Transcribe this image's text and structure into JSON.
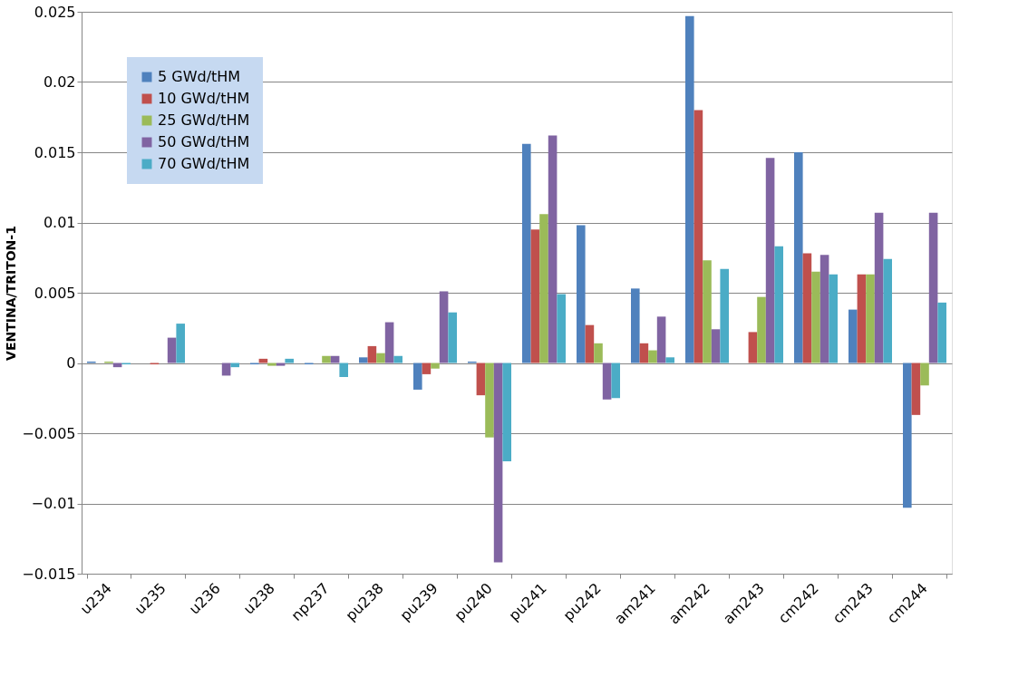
{
  "chart_data": {
    "type": "bar",
    "ylabel": "VENTINA/TRITON-1",
    "categories": [
      "u234",
      "u235",
      "u236",
      "u238",
      "np237",
      "pu238",
      "pu239",
      "pu240",
      "pu241",
      "pu242",
      "am241",
      "am242",
      "am243",
      "cm242",
      "cm243",
      "cm244"
    ],
    "series": [
      {
        "name": "5 GWd/tHM",
        "color": "#4f81bd",
        "values": [
          0.0001,
          0,
          0,
          -0.0001,
          -0.0001,
          0.0004,
          -0.0019,
          0.0001,
          0.0156,
          0.0098,
          0.0053,
          0.0247,
          0,
          0.015,
          0.0038,
          -0.0103
        ]
      },
      {
        "name": "10 GWd/tHM",
        "color": "#c0504d",
        "values": [
          0,
          -0.0001,
          0,
          0.0003,
          0,
          0.0012,
          -0.0008,
          -0.0023,
          0.0095,
          0.0027,
          0.0014,
          0.018,
          0.0022,
          0.0078,
          0.0063,
          -0.0037
        ]
      },
      {
        "name": "25 GWd/tHM",
        "color": "#9bbb59",
        "values": [
          0.0001,
          0,
          0,
          -0.0002,
          0.0005,
          0.0007,
          -0.0004,
          -0.0053,
          0.0106,
          0.0014,
          0.0009,
          0.0073,
          0.0047,
          0.0065,
          0.0063,
          -0.0016
        ]
      },
      {
        "name": "50 GWd/tHM",
        "color": "#8064a2",
        "values": [
          -0.0003,
          0.0018,
          -0.0009,
          -0.0002,
          0.0005,
          0.0029,
          0.0051,
          -0.0142,
          0.0162,
          -0.0026,
          0.0033,
          0.0024,
          0.0146,
          0.0077,
          0.0107,
          0.0107
        ]
      },
      {
        "name": "70 GWd/tHM",
        "color": "#4bacc6",
        "values": [
          -0.0001,
          0.0028,
          -0.0003,
          0.0003,
          -0.001,
          0.0005,
          0.0036,
          -0.007,
          0.0049,
          -0.0025,
          0.0004,
          0.0067,
          0.0083,
          0.0063,
          0.0074,
          0.0043
        ]
      }
    ],
    "ylim": [
      -0.015,
      0.025
    ],
    "yticks": [
      -0.015,
      -0.01,
      -0.005,
      0,
      0.005,
      0.01,
      0.015,
      0.02,
      0.025
    ],
    "grid": "y",
    "legend": "top left"
  }
}
